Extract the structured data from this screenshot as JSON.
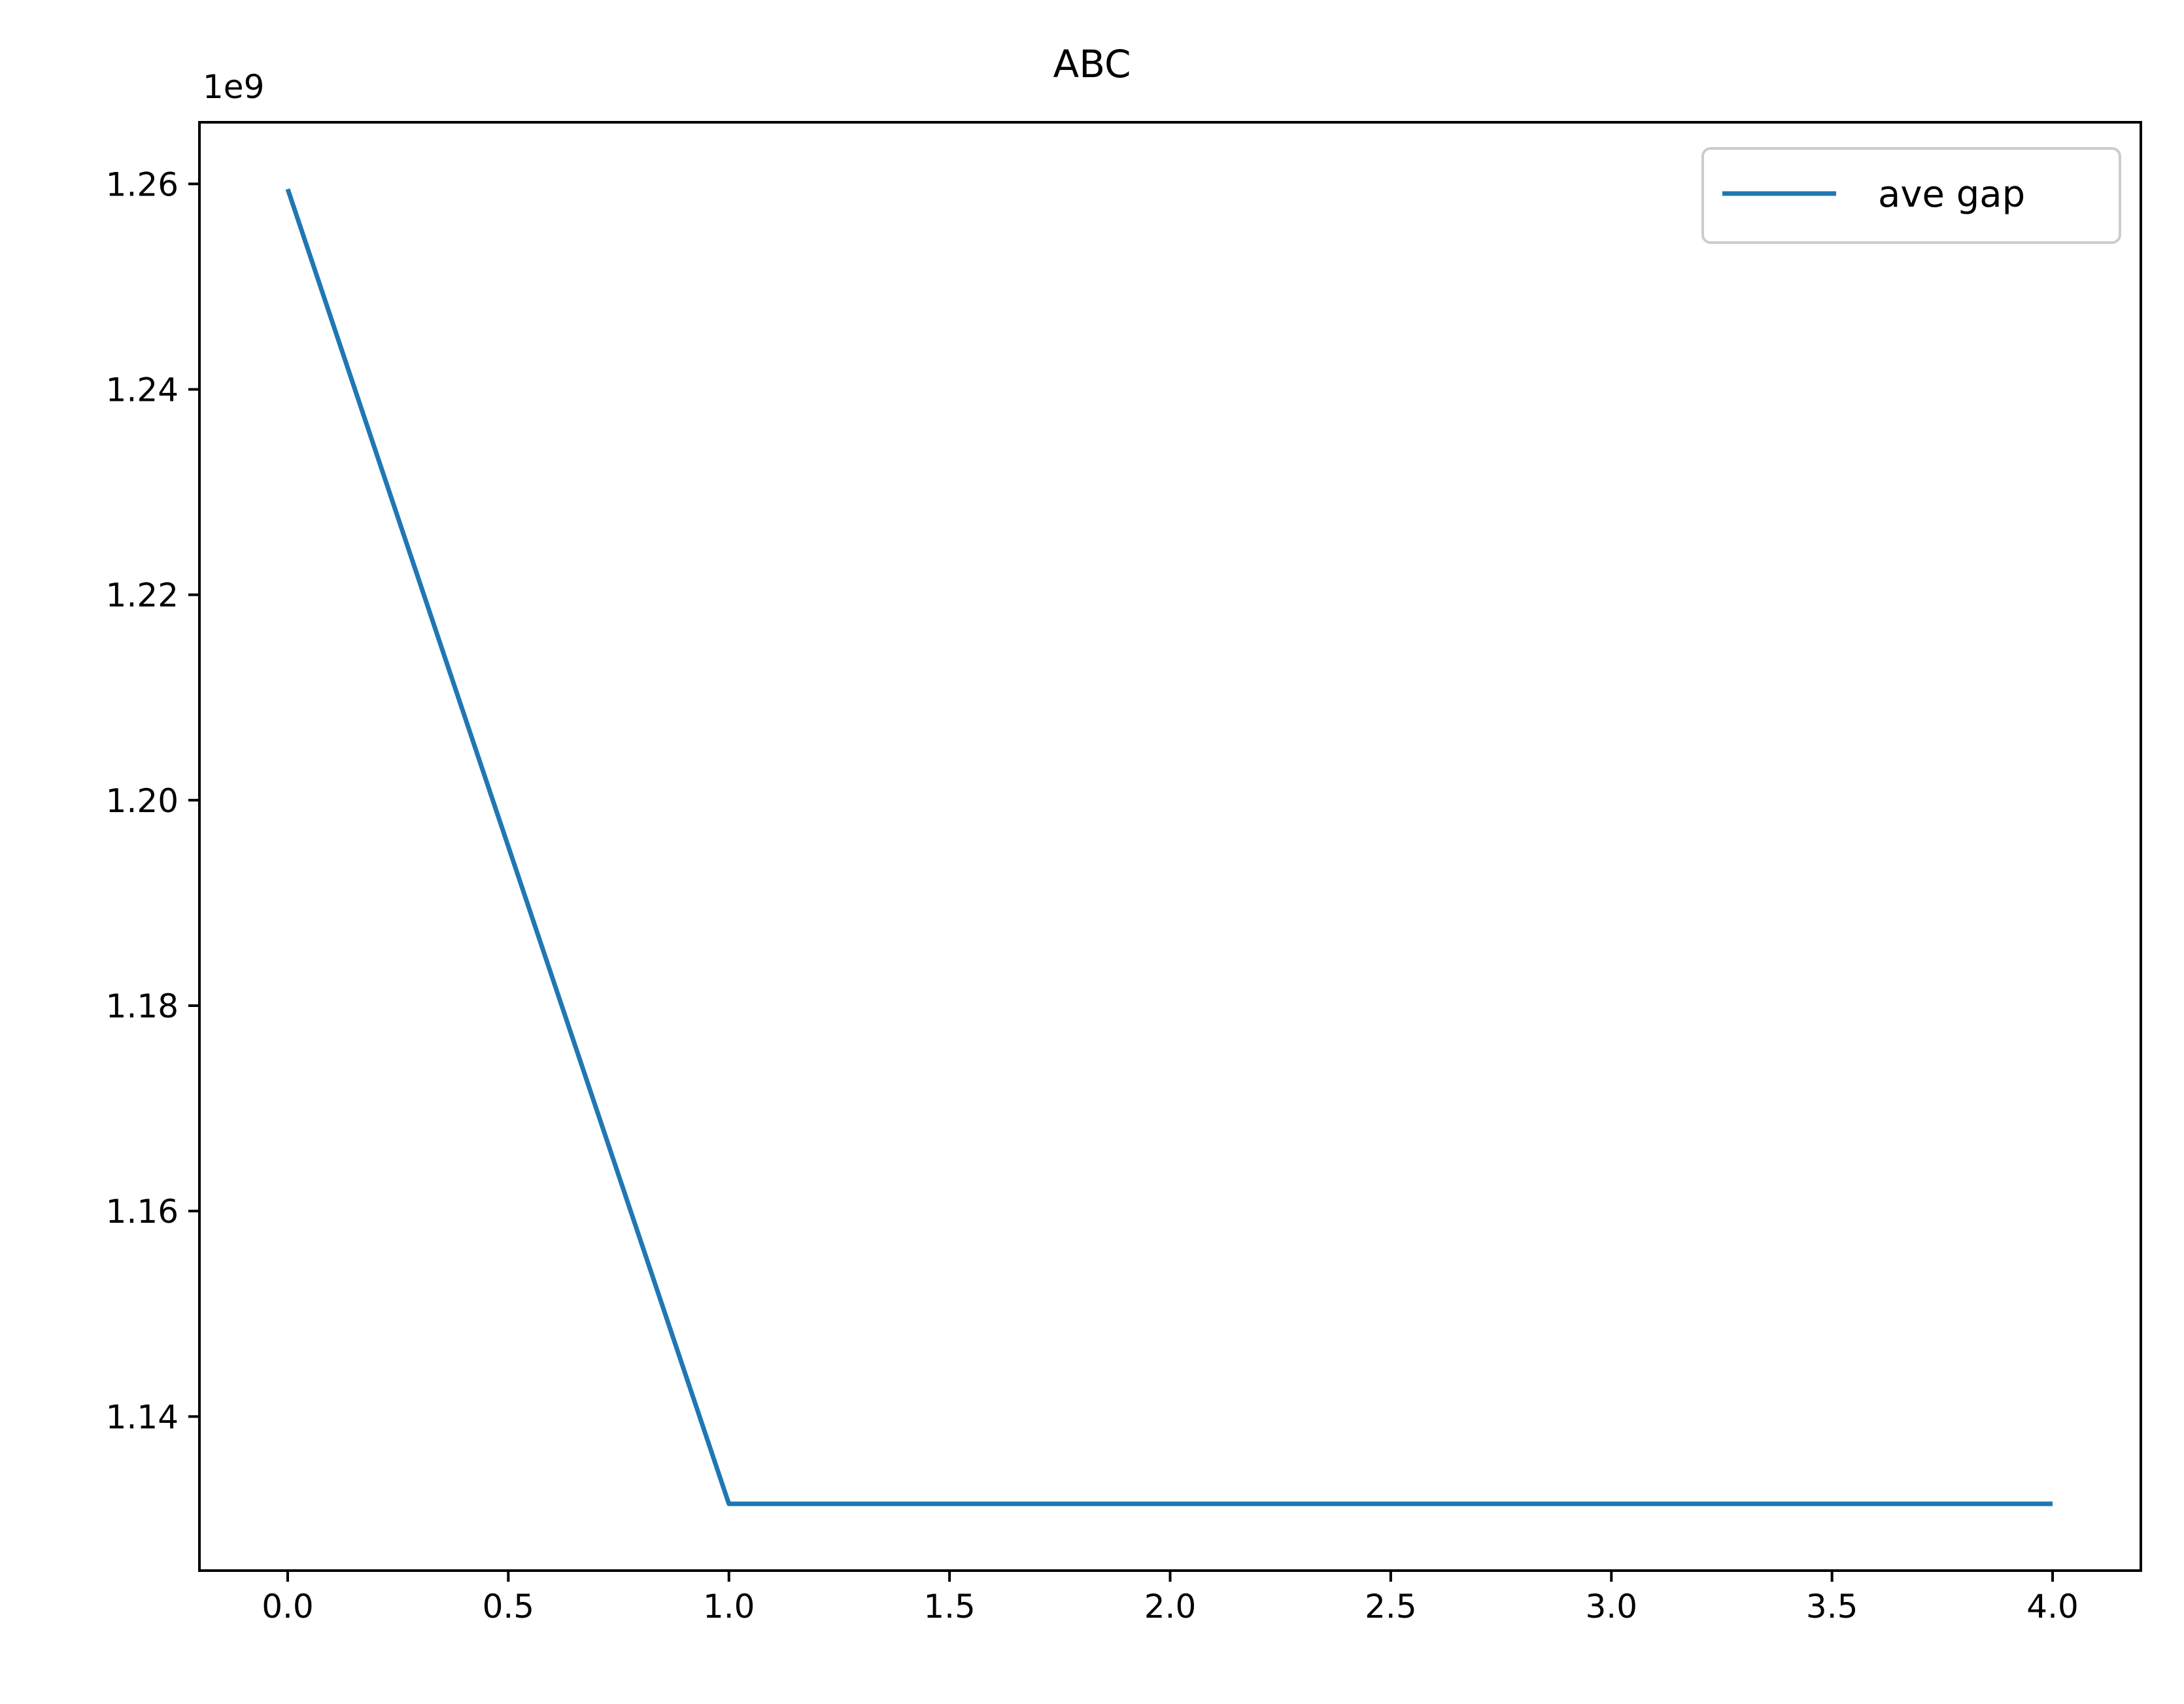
{
  "chart_data": {
    "type": "line",
    "title": "ABC",
    "xlabel": "",
    "ylabel": "",
    "y_offset_label": "1e9",
    "y_scale_factor": 1000000000,
    "xlim": [
      -0.2,
      4.2
    ],
    "ylim": [
      1125000000,
      1266000000
    ],
    "x_ticks": [
      0.0,
      0.5,
      1.0,
      1.5,
      2.0,
      2.5,
      3.0,
      3.5,
      4.0
    ],
    "x_tick_labels": [
      "0.0",
      "0.5",
      "1.0",
      "1.5",
      "2.0",
      "2.5",
      "3.0",
      "3.5",
      "4.0"
    ],
    "y_ticks": [
      1140000000,
      1160000000,
      1180000000,
      1200000000,
      1220000000,
      1240000000,
      1260000000
    ],
    "y_tick_labels": [
      "1.14",
      "1.16",
      "1.18",
      "1.20",
      "1.22",
      "1.24",
      "1.26"
    ],
    "grid": false,
    "legend_position": "top-right",
    "series": [
      {
        "name": "ave gap",
        "color": "#1f77b4",
        "x": [
          0,
          1,
          2,
          3,
          4
        ],
        "y": [
          1259500000,
          1131500000,
          1131500000,
          1131500000,
          1131500000
        ]
      }
    ]
  }
}
